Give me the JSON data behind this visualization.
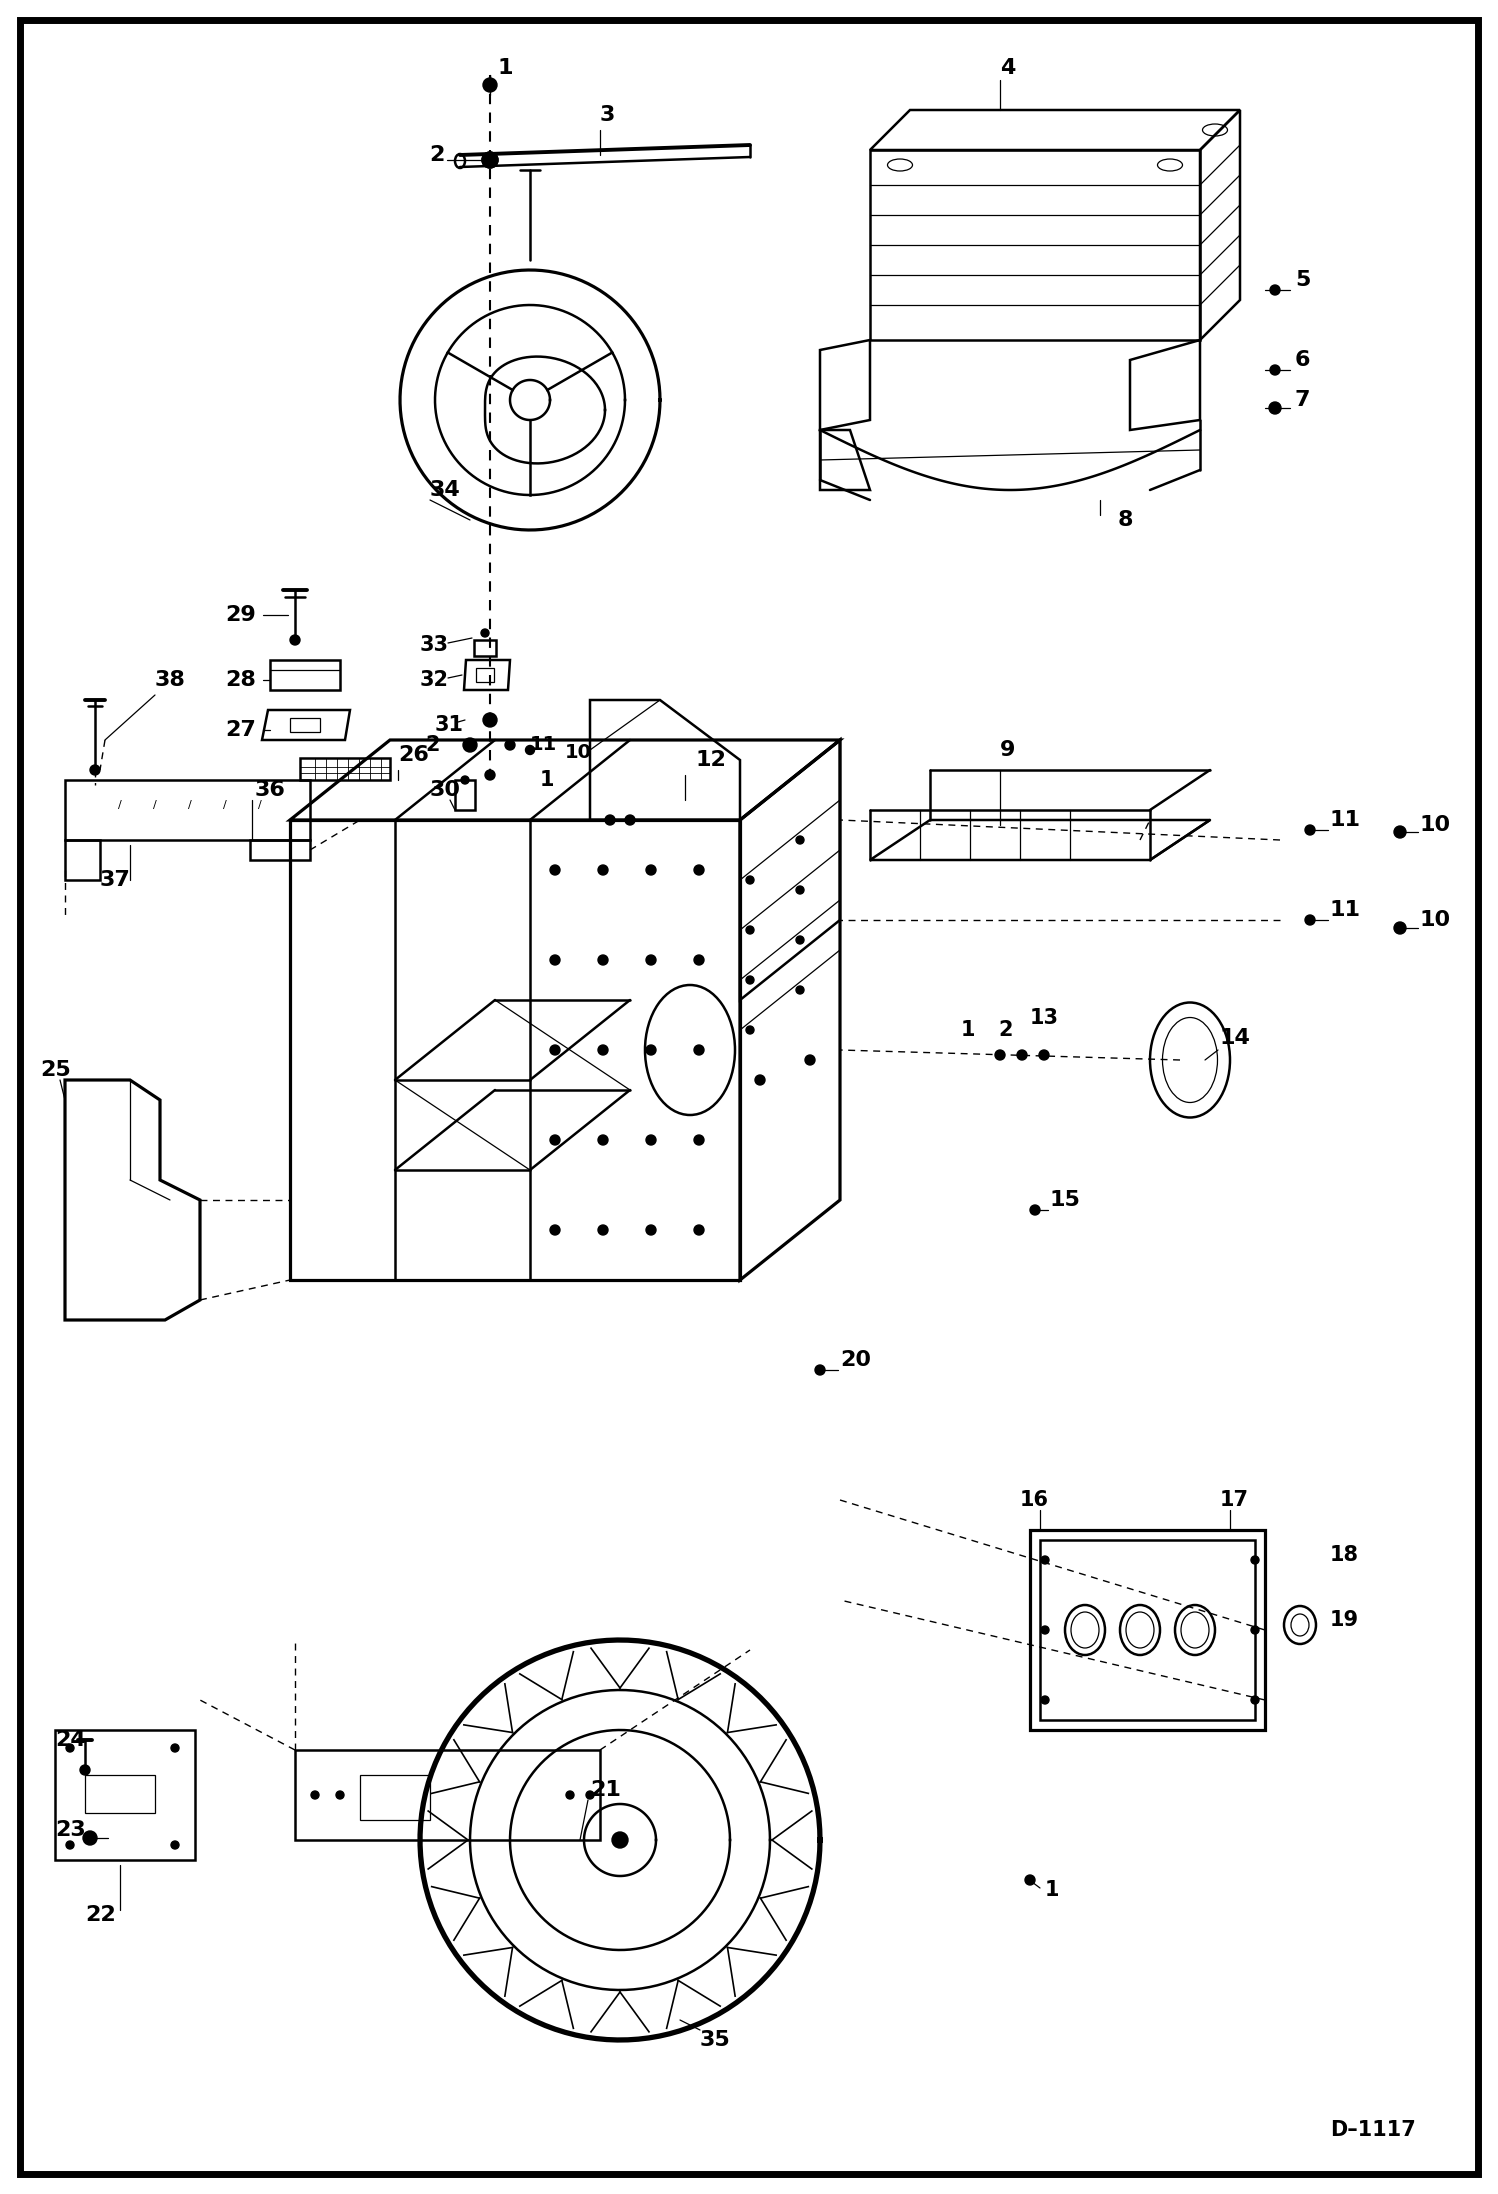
{
  "background_color": "#ffffff",
  "border_color": "#000000",
  "text_color": "#000000",
  "fig_width": 14.98,
  "fig_height": 21.94,
  "dpi": 100,
  "border_width": 6,
  "diagram_code_ref": "D-1117",
  "lw_main": 1.8,
  "lw_thin": 0.9,
  "lw_border": 5.0
}
